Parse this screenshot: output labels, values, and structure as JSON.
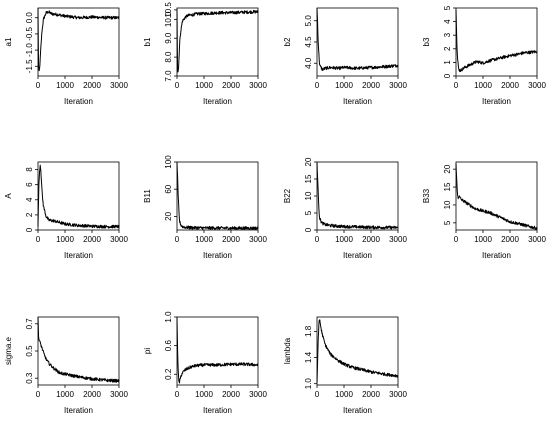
{
  "chart_data": [
    {
      "type": "line",
      "ylabel": "a1",
      "xlabel": "Iteration",
      "xlim": [
        0,
        3000
      ],
      "ylim": [
        -1.8,
        0.3
      ],
      "xticks": [
        0,
        1000,
        2000,
        3000
      ],
      "yticks": [
        -1.5,
        -1.0,
        -0.5,
        0.0
      ],
      "ytick_labels": [
        "-1.5",
        "-1.0",
        "-0.5",
        "0.0"
      ],
      "x": [
        0,
        20,
        40,
        60,
        80,
        100,
        150,
        200,
        300,
        400,
        500,
        700,
        1000,
        1500,
        2000,
        2500,
        3000
      ],
      "values": [
        0.3,
        -1.5,
        -1.7,
        -1.55,
        -1.3,
        -1.0,
        -0.4,
        -0.05,
        0.15,
        0.18,
        0.12,
        0.1,
        0.05,
        0.0,
        0.02,
        0.0,
        0.0
      ]
    },
    {
      "type": "line",
      "ylabel": "b1",
      "xlabel": "Iteration",
      "xlim": [
        0,
        3000
      ],
      "ylim": [
        7.0,
        10.6
      ],
      "xticks": [
        0,
        1000,
        2000,
        3000
      ],
      "yticks": [
        7.0,
        8.0,
        9.0,
        10.0
      ],
      "ytick_labels": [
        "7.0",
        "8.0",
        "9.0",
        "10.0"
      ],
      "extra_ytick": {
        "value": 10.5,
        "label": "10.5"
      },
      "x": [
        0,
        20,
        40,
        60,
        80,
        100,
        150,
        200,
        300,
        400,
        600,
        800,
        1000,
        1500,
        2000,
        2500,
        3000
      ],
      "values": [
        10.6,
        7.4,
        7.2,
        7.5,
        8.2,
        8.8,
        9.5,
        9.9,
        10.1,
        10.2,
        10.25,
        10.3,
        10.3,
        10.35,
        10.35,
        10.38,
        10.4
      ]
    },
    {
      "type": "line",
      "ylabel": "b2",
      "xlabel": "Iteration",
      "xlim": [
        0,
        3000
      ],
      "ylim": [
        3.7,
        5.3
      ],
      "xticks": [
        0,
        1000,
        2000,
        3000
      ],
      "yticks": [
        4.0,
        4.5,
        5.0
      ],
      "ytick_labels": [
        "4.0",
        "4.5",
        "5.0"
      ],
      "x": [
        0,
        20,
        40,
        60,
        80,
        100,
        150,
        200,
        300,
        500,
        800,
        1000,
        1500,
        2000,
        2500,
        3000
      ],
      "values": [
        5.3,
        5.0,
        4.6,
        4.3,
        4.1,
        3.95,
        3.9,
        3.85,
        3.88,
        3.9,
        3.88,
        3.9,
        3.88,
        3.9,
        3.92,
        3.95
      ]
    },
    {
      "type": "line",
      "ylabel": "b3",
      "xlabel": "Iteration",
      "xlim": [
        0,
        3000
      ],
      "ylim": [
        0,
        5
      ],
      "xticks": [
        0,
        1000,
        2000,
        3000
      ],
      "yticks": [
        0,
        1,
        2,
        3,
        4,
        5
      ],
      "ytick_labels": [
        "0",
        "1",
        "2",
        "3",
        "4",
        "5"
      ],
      "x": [
        0,
        20,
        40,
        60,
        80,
        100,
        150,
        200,
        300,
        500,
        700,
        800,
        1000,
        1200,
        1500,
        1800,
        2000,
        2300,
        2500,
        2800,
        3000
      ],
      "values": [
        5.0,
        3.5,
        2.0,
        1.2,
        0.8,
        0.5,
        0.4,
        0.45,
        0.6,
        0.8,
        1.0,
        1.05,
        0.95,
        1.1,
        1.25,
        1.4,
        1.5,
        1.6,
        1.7,
        1.75,
        1.8
      ]
    },
    {
      "type": "line",
      "ylabel": "A",
      "xlabel": "Iteration",
      "xlim": [
        0,
        3000
      ],
      "ylim": [
        0,
        9
      ],
      "xticks": [
        0,
        1000,
        2000,
        3000
      ],
      "yticks": [
        0,
        2,
        4,
        6,
        8
      ],
      "ytick_labels": [
        "0",
        "2",
        "4",
        "6",
        "8"
      ],
      "x": [
        0,
        30,
        60,
        80,
        100,
        130,
        160,
        200,
        300,
        400,
        600,
        800,
        1000,
        1500,
        2000,
        2500,
        3000
      ],
      "values": [
        0.5,
        5.5,
        8.0,
        8.6,
        8.2,
        6.5,
        4.5,
        3.2,
        1.8,
        1.3,
        1.2,
        1.0,
        0.8,
        0.6,
        0.5,
        0.45,
        0.45
      ]
    },
    {
      "type": "line",
      "ylabel": "B11",
      "xlabel": "Iteration",
      "xlim": [
        0,
        3000
      ],
      "ylim": [
        0,
        100
      ],
      "xticks": [
        0,
        1000,
        2000,
        3000
      ],
      "yticks": [
        20,
        60,
        100
      ],
      "ytick_labels": [
        "20",
        "60",
        "100"
      ],
      "x": [
        0,
        20,
        40,
        60,
        80,
        100,
        150,
        200,
        300,
        500,
        1000,
        1500,
        2000,
        2500,
        3000
      ],
      "values": [
        100,
        80,
        55,
        35,
        20,
        12,
        7,
        5,
        4,
        3.5,
        3,
        3,
        2.8,
        2.8,
        2.7
      ]
    },
    {
      "type": "line",
      "ylabel": "B22",
      "xlabel": "Iteration",
      "xlim": [
        0,
        3000
      ],
      "ylim": [
        0,
        20
      ],
      "xticks": [
        0,
        1000,
        2000,
        3000
      ],
      "yticks": [
        0,
        5,
        10,
        15,
        20
      ],
      "ytick_labels": [
        "0",
        "5",
        "10",
        "15",
        "20"
      ],
      "x": [
        0,
        20,
        40,
        60,
        80,
        100,
        150,
        200,
        300,
        500,
        1000,
        1500,
        2000,
        2500,
        3000
      ],
      "values": [
        20,
        16,
        12,
        8,
        5,
        3.5,
        2.5,
        2,
        1.6,
        1.3,
        1.0,
        0.9,
        0.8,
        0.75,
        0.7
      ]
    },
    {
      "type": "line",
      "ylabel": "B33",
      "xlabel": "Iteration",
      "xlim": [
        0,
        3000
      ],
      "ylim": [
        3,
        22
      ],
      "xticks": [
        0,
        1000,
        2000,
        3000
      ],
      "yticks": [
        5,
        10,
        15,
        20
      ],
      "ytick_labels": [
        "5",
        "10",
        "15",
        "20"
      ],
      "x": [
        0,
        20,
        40,
        60,
        80,
        100,
        150,
        200,
        300,
        500,
        700,
        1000,
        1200,
        1500,
        1800,
        2000,
        2300,
        2500,
        2800,
        3000
      ],
      "values": [
        22,
        18,
        15,
        12.5,
        12,
        12.5,
        12,
        11.5,
        11,
        10,
        9,
        8.3,
        8,
        7,
        6,
        5.3,
        4.8,
        4.4,
        3.8,
        3.5
      ]
    },
    {
      "type": "line",
      "ylabel": "sigma.e",
      "xlabel": "Iteration",
      "xlim": [
        0,
        3000
      ],
      "ylim": [
        0.25,
        0.75
      ],
      "xticks": [
        0,
        1000,
        2000,
        3000
      ],
      "yticks": [
        0.3,
        0.5,
        0.7
      ],
      "ytick_labels": [
        "0.3",
        "0.5",
        "0.7"
      ],
      "x": [
        0,
        20,
        40,
        60,
        80,
        100,
        150,
        200,
        300,
        400,
        600,
        800,
        1000,
        1500,
        2000,
        2500,
        3000
      ],
      "values": [
        0.75,
        0.62,
        0.58,
        0.57,
        0.56,
        0.55,
        0.52,
        0.49,
        0.44,
        0.41,
        0.37,
        0.34,
        0.33,
        0.31,
        0.295,
        0.285,
        0.28
      ]
    },
    {
      "type": "line",
      "ylabel": "pi",
      "xlabel": "Iteration",
      "xlim": [
        0,
        3000
      ],
      "ylim": [
        0.05,
        1.0
      ],
      "xticks": [
        0,
        1000,
        2000,
        3000
      ],
      "yticks": [
        0.2,
        0.6,
        1.0
      ],
      "ytick_labels": [
        "0.2",
        "0.6",
        "1.0"
      ],
      "x": [
        0,
        20,
        40,
        60,
        80,
        100,
        150,
        200,
        300,
        500,
        700,
        1000,
        1500,
        2000,
        2500,
        3000
      ],
      "values": [
        1.0,
        0.6,
        0.3,
        0.12,
        0.08,
        0.1,
        0.18,
        0.22,
        0.26,
        0.3,
        0.32,
        0.33,
        0.33,
        0.34,
        0.34,
        0.33
      ]
    },
    {
      "type": "line",
      "ylabel": "lambda",
      "xlabel": "Iteration",
      "xlim": [
        0,
        3000
      ],
      "ylim": [
        0.98,
        2.02
      ],
      "xticks": [
        0,
        1000,
        2000,
        3000
      ],
      "yticks": [
        1.0,
        1.4,
        1.8
      ],
      "ytick_labels": [
        "1.0",
        "1.4",
        "1.8"
      ],
      "x": [
        0,
        20,
        40,
        60,
        80,
        100,
        130,
        160,
        200,
        300,
        500,
        800,
        1000,
        1300,
        1600,
        2000,
        2300,
        2600,
        3000
      ],
      "values": [
        1.0,
        1.3,
        1.6,
        1.85,
        1.95,
        1.98,
        1.9,
        1.82,
        1.75,
        1.6,
        1.45,
        1.35,
        1.3,
        1.25,
        1.22,
        1.18,
        1.16,
        1.14,
        1.12
      ]
    }
  ]
}
